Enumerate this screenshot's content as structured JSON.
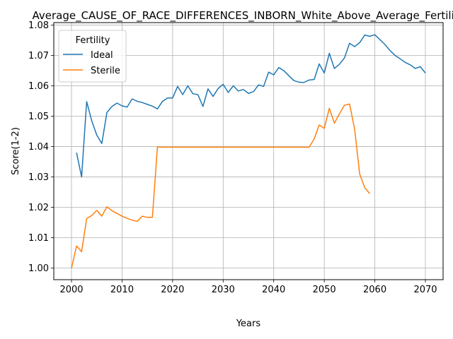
{
  "chart_data": {
    "type": "line",
    "title": "Average_CAUSE_OF_RACE_DIFFERENCES_INBORN_White_Above_Average_Fertility",
    "xlabel": "Years",
    "ylabel": "Score(1-2)",
    "xlim": [
      1996.5,
      2073.5
    ],
    "ylim": [
      0.9962,
      1.0808
    ],
    "xticks": [
      2000,
      2010,
      2020,
      2030,
      2040,
      2050,
      2060,
      2070
    ],
    "xtick_labels": [
      "2000",
      "2010",
      "2020",
      "2030",
      "2040",
      "2050",
      "2060",
      "2070"
    ],
    "yticks": [
      1.0,
      1.01,
      1.02,
      1.03,
      1.04,
      1.05,
      1.06,
      1.07,
      1.08
    ],
    "ytick_labels": [
      "1.00",
      "1.01",
      "1.02",
      "1.03",
      "1.04",
      "1.05",
      "1.06",
      "1.07",
      "1.08"
    ],
    "grid": true,
    "legend": {
      "title": "Fertility",
      "placement": "top-left"
    },
    "series": [
      {
        "name": "Ideal",
        "color": "#1f77b4",
        "x": [
          2001,
          2002,
          2003,
          2004,
          2005,
          2006,
          2007,
          2008,
          2009,
          2010,
          2011,
          2012,
          2013,
          2014,
          2015,
          2016,
          2017,
          2018,
          2019,
          2020,
          2021,
          2022,
          2023,
          2024,
          2025,
          2026,
          2027,
          2028,
          2029,
          2030,
          2031,
          2032,
          2033,
          2034,
          2035,
          2036,
          2037,
          2038,
          2039,
          2040,
          2041,
          2042,
          2043,
          2044,
          2045,
          2046,
          2047,
          2048,
          2049,
          2050,
          2051,
          2052,
          2053,
          2054,
          2055,
          2056,
          2057,
          2058,
          2059,
          2060,
          2061,
          2062,
          2063,
          2064,
          2065,
          2066,
          2067,
          2068,
          2069,
          2070
        ],
        "values": [
          1.038,
          1.03,
          1.0548,
          1.0485,
          1.0438,
          1.041,
          1.0512,
          1.0532,
          1.0543,
          1.0534,
          1.053,
          1.0557,
          1.0549,
          1.0545,
          1.0539,
          1.0533,
          1.0524,
          1.0549,
          1.056,
          1.056,
          1.0598,
          1.0571,
          1.06,
          1.0574,
          1.0571,
          1.0532,
          1.059,
          1.0565,
          1.0591,
          1.0605,
          1.0578,
          1.06,
          1.0583,
          1.0588,
          1.0575,
          1.0581,
          1.0603,
          1.0598,
          1.0645,
          1.0636,
          1.066,
          1.065,
          1.0633,
          1.0617,
          1.0612,
          1.0611,
          1.0619,
          1.0621,
          1.0672,
          1.0642,
          1.0707,
          1.0657,
          1.0671,
          1.0692,
          1.074,
          1.0729,
          1.0742,
          1.0767,
          1.0763,
          1.0768,
          1.0752,
          1.0736,
          1.0716,
          1.07,
          1.0689,
          1.0677,
          1.0669,
          1.0657,
          1.0663,
          1.0642
        ]
      },
      {
        "name": "Sterile",
        "color": "#ff7f0e",
        "x": [
          2000,
          2001,
          2002,
          2003,
          2004,
          2005,
          2006,
          2007,
          2008,
          2009,
          2010,
          2011,
          2012,
          2013,
          2014,
          2015,
          2016,
          2017,
          2018,
          2019,
          2020,
          2021,
          2022,
          2023,
          2024,
          2025,
          2026,
          2027,
          2028,
          2029,
          2030,
          2031,
          2032,
          2033,
          2034,
          2035,
          2036,
          2037,
          2038,
          2039,
          2040,
          2041,
          2042,
          2043,
          2044,
          2045,
          2046,
          2047,
          2048,
          2049,
          2050,
          2051,
          2052,
          2053,
          2054,
          2055,
          2056,
          2057,
          2058,
          2059
        ],
        "values": [
          1.0,
          1.0073,
          1.0054,
          1.0163,
          1.0173,
          1.019,
          1.0171,
          1.0202,
          1.0189,
          1.018,
          1.0171,
          1.0164,
          1.0158,
          1.0154,
          1.0171,
          1.0167,
          1.0167,
          1.0399,
          1.0398,
          1.0398,
          1.0398,
          1.0398,
          1.0398,
          1.0398,
          1.0398,
          1.0398,
          1.0398,
          1.0398,
          1.0398,
          1.0398,
          1.0398,
          1.0398,
          1.0398,
          1.0398,
          1.0398,
          1.0398,
          1.0398,
          1.0398,
          1.0398,
          1.0398,
          1.0398,
          1.0398,
          1.0398,
          1.0398,
          1.0398,
          1.0398,
          1.0398,
          1.0398,
          1.0425,
          1.0471,
          1.046,
          1.0526,
          1.0477,
          1.0508,
          1.0536,
          1.054,
          1.0458,
          1.031,
          1.0265,
          1.0245
        ]
      }
    ]
  }
}
